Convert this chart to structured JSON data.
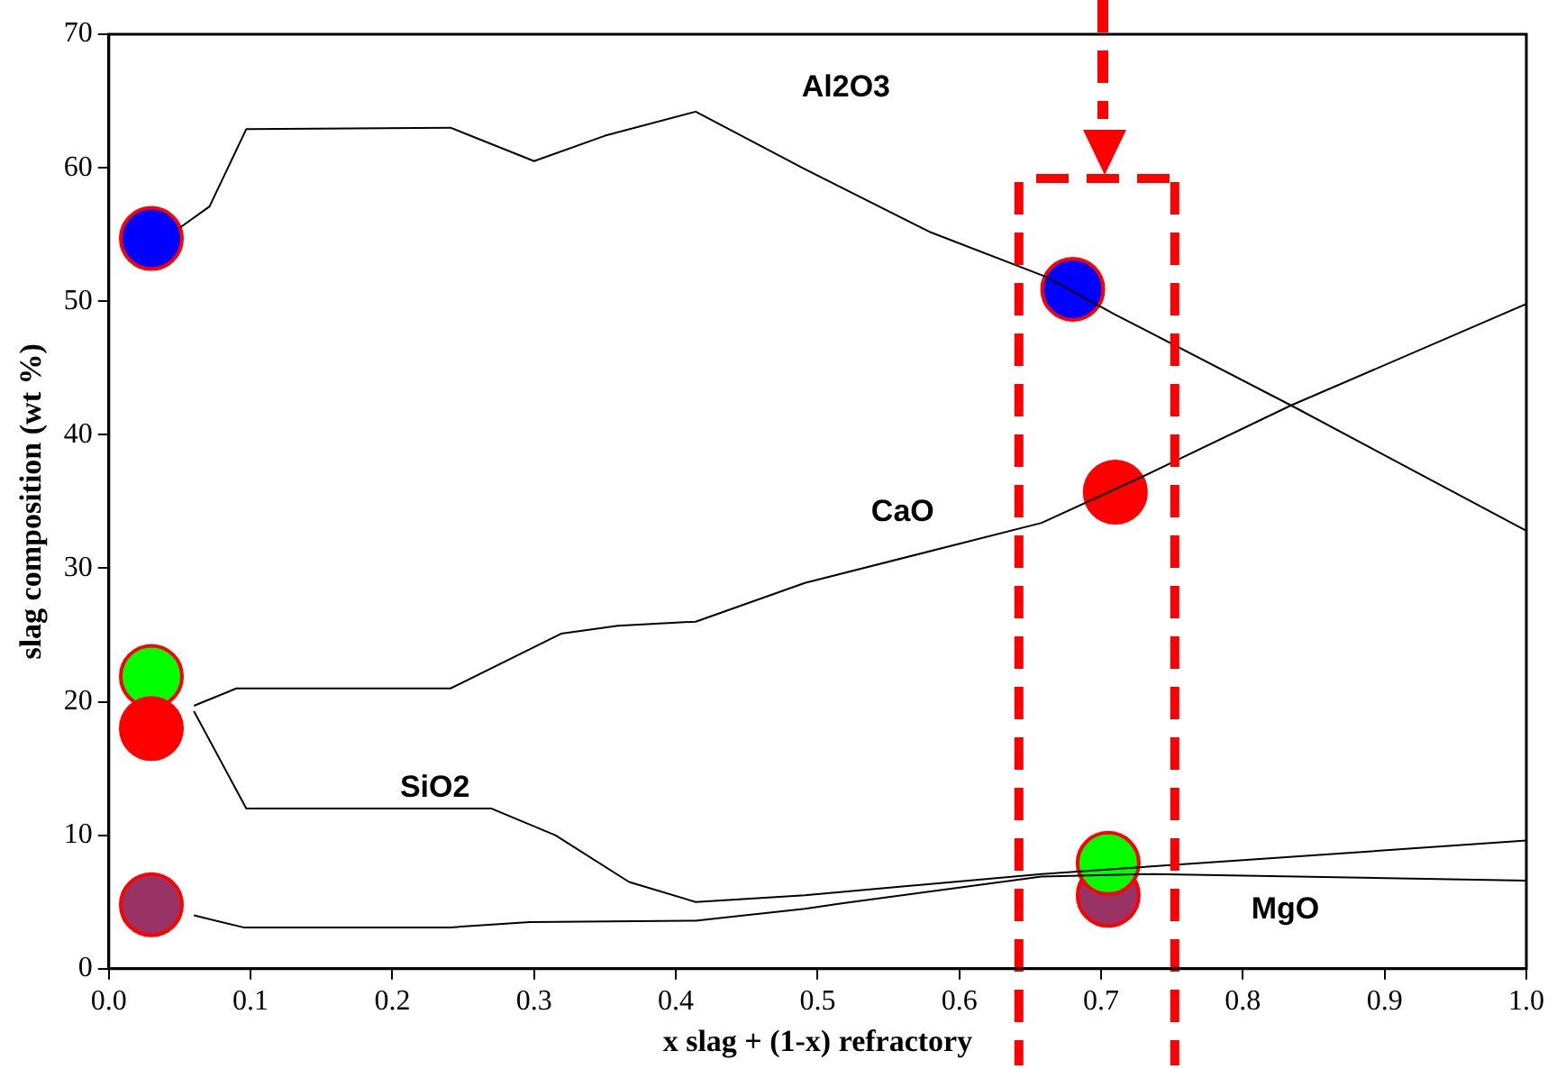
{
  "chart_data": {
    "type": "line",
    "xlabel": "x slag + (1-x) refractory",
    "ylabel": "slag composition (wt %)",
    "xlim": [
      0,
      1
    ],
    "xticks": [
      {
        "value": 0,
        "label": "0.0"
      },
      0.1,
      0.2,
      0.3,
      0.4,
      0.5,
      0.6,
      0.7,
      0.8,
      0.9,
      {
        "value": 1,
        "label": "1.0"
      }
    ],
    "ylim": [
      0,
      70
    ],
    "yticks": [
      0,
      10,
      20,
      30,
      40,
      50,
      60,
      70
    ],
    "grid": false,
    "ref_lines": [
      {
        "axis": "x",
        "value": 0.642,
        "color": "#ff0000",
        "line_style": "dashed"
      },
      {
        "axis": "x",
        "value": 0.752,
        "color": "#ff0000",
        "line_style": "dashed"
      }
    ],
    "legend": false,
    "marker": "none",
    "line_style": "solid",
    "series": [
      {
        "name": "Al2O3",
        "color": "#000000",
        "x": [
          0.05,
          0.071,
          0.097,
          0.241,
          0.3,
          0.35,
          0.414,
          0.491,
          0.579,
          0.662,
          0.71,
          0.834,
          1.0
        ],
        "values": [
          55.5,
          57.1,
          62.9,
          63,
          60.5,
          62.4,
          64.2,
          59.9,
          55.2,
          51.8,
          49,
          42.2,
          32.8
        ]
      },
      {
        "name": "CaO",
        "color": "#000000",
        "x": [
          0.06,
          0.09,
          0.241,
          0.319,
          0.359,
          0.414,
          0.491,
          0.658,
          0.728,
          0.834,
          1.0
        ],
        "values": [
          19.7,
          21,
          21,
          25.1,
          25.7,
          26,
          28.9,
          33.4,
          36.8,
          42.2,
          49.8
        ]
      },
      {
        "name": "SiO2",
        "color": "#000000",
        "x": [
          0.06,
          0.097,
          0.27,
          0.315,
          0.367,
          0.414,
          0.491,
          0.658,
          1.0
        ],
        "values": [
          19.3,
          12,
          12,
          10,
          6.5,
          5,
          5.5,
          7.1,
          9.6
        ]
      },
      {
        "name": "MgO",
        "color": "#000000",
        "x": [
          0.06,
          0.095,
          0.241,
          0.297,
          0.414,
          0.491,
          0.517,
          0.658,
          0.737,
          1.0
        ],
        "values": [
          4,
          3.1,
          3.1,
          3.5,
          3.6,
          4.5,
          4.9,
          6.9,
          7.1,
          6.6
        ]
      },
      {
        "type": "scatter",
        "marker": "circle",
        "x": [
          0.03,
          0.03,
          0.03,
          0.03,
          0.68,
          0.71,
          0.705,
          0.705
        ],
        "values": [
          54.7,
          21.9,
          18,
          4.8,
          50.9,
          35.7,
          5.5,
          7.9
        ],
        "colors": [
          "#0000ff",
          "#00ff00",
          "#ff0000",
          "#993366",
          "#0000ff",
          "#ff0000",
          "#993366",
          "#00ff00"
        ]
      }
    ]
  }
}
